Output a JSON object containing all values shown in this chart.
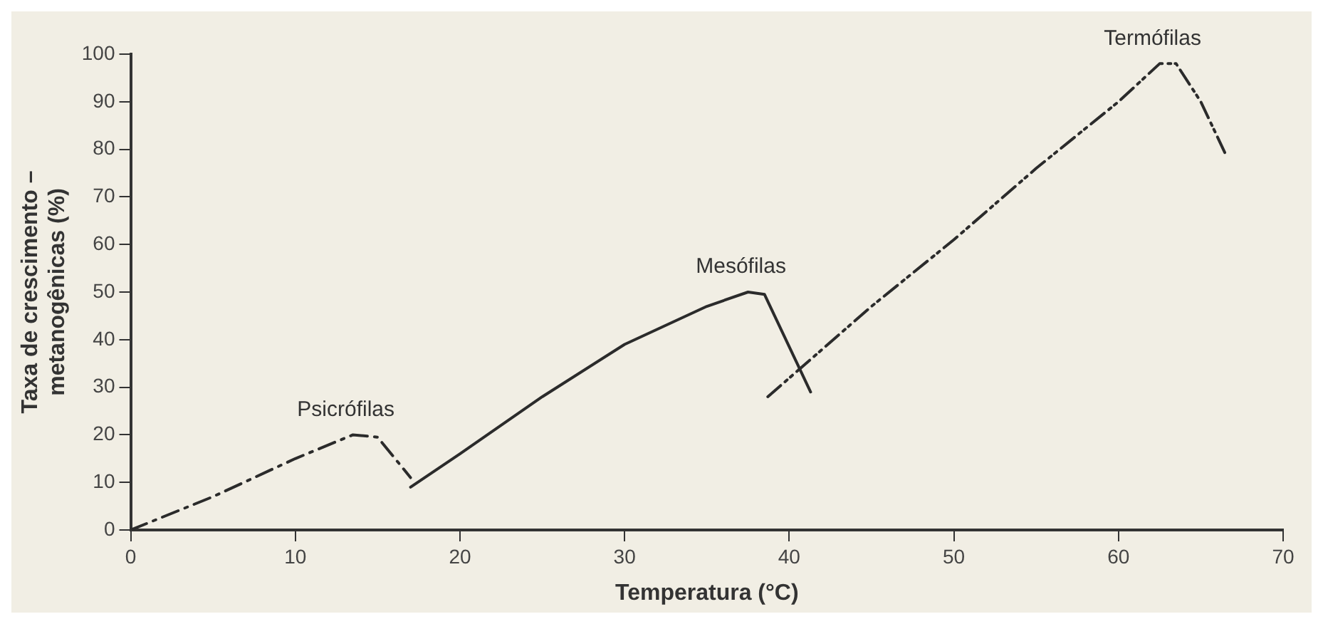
{
  "chart_data": {
    "type": "line",
    "xlabel": "Temperatura (°C)",
    "ylabel": "Taxa de crescimento –\nmetanogênicas (%)",
    "xlim": [
      0,
      70
    ],
    "xticks": [
      0,
      10,
      20,
      30,
      40,
      50,
      60,
      70
    ],
    "ylim": [
      0,
      100
    ],
    "yticks": [
      0,
      10,
      20,
      30,
      40,
      50,
      60,
      70,
      80,
      90,
      100
    ],
    "grid": false,
    "legend": false,
    "marker": "none",
    "series": [
      {
        "name": "Psicrófilas",
        "color": "#2b2b2b",
        "line_style": "dashed",
        "x": [
          0,
          5,
          10,
          13.5,
          15,
          17
        ],
        "values": [
          0,
          7,
          15,
          20,
          19.5,
          11
        ]
      },
      {
        "name": "Mesófilas",
        "color": "#2b2b2b",
        "line_style": "solid",
        "x": [
          17,
          20,
          25,
          30,
          35,
          37.5,
          38.5,
          41.3
        ],
        "values": [
          9,
          16,
          28,
          39,
          47,
          50,
          49.5,
          29
        ]
      },
      {
        "name": "Termófilas",
        "color": "#2b2b2b",
        "line_style": "dotted",
        "x": [
          38.7,
          45,
          50,
          55,
          60,
          62.5,
          63.5,
          65,
          66.5
        ],
        "values": [
          28,
          47,
          61,
          76,
          90,
          98,
          98,
          90,
          79
        ]
      }
    ]
  }
}
